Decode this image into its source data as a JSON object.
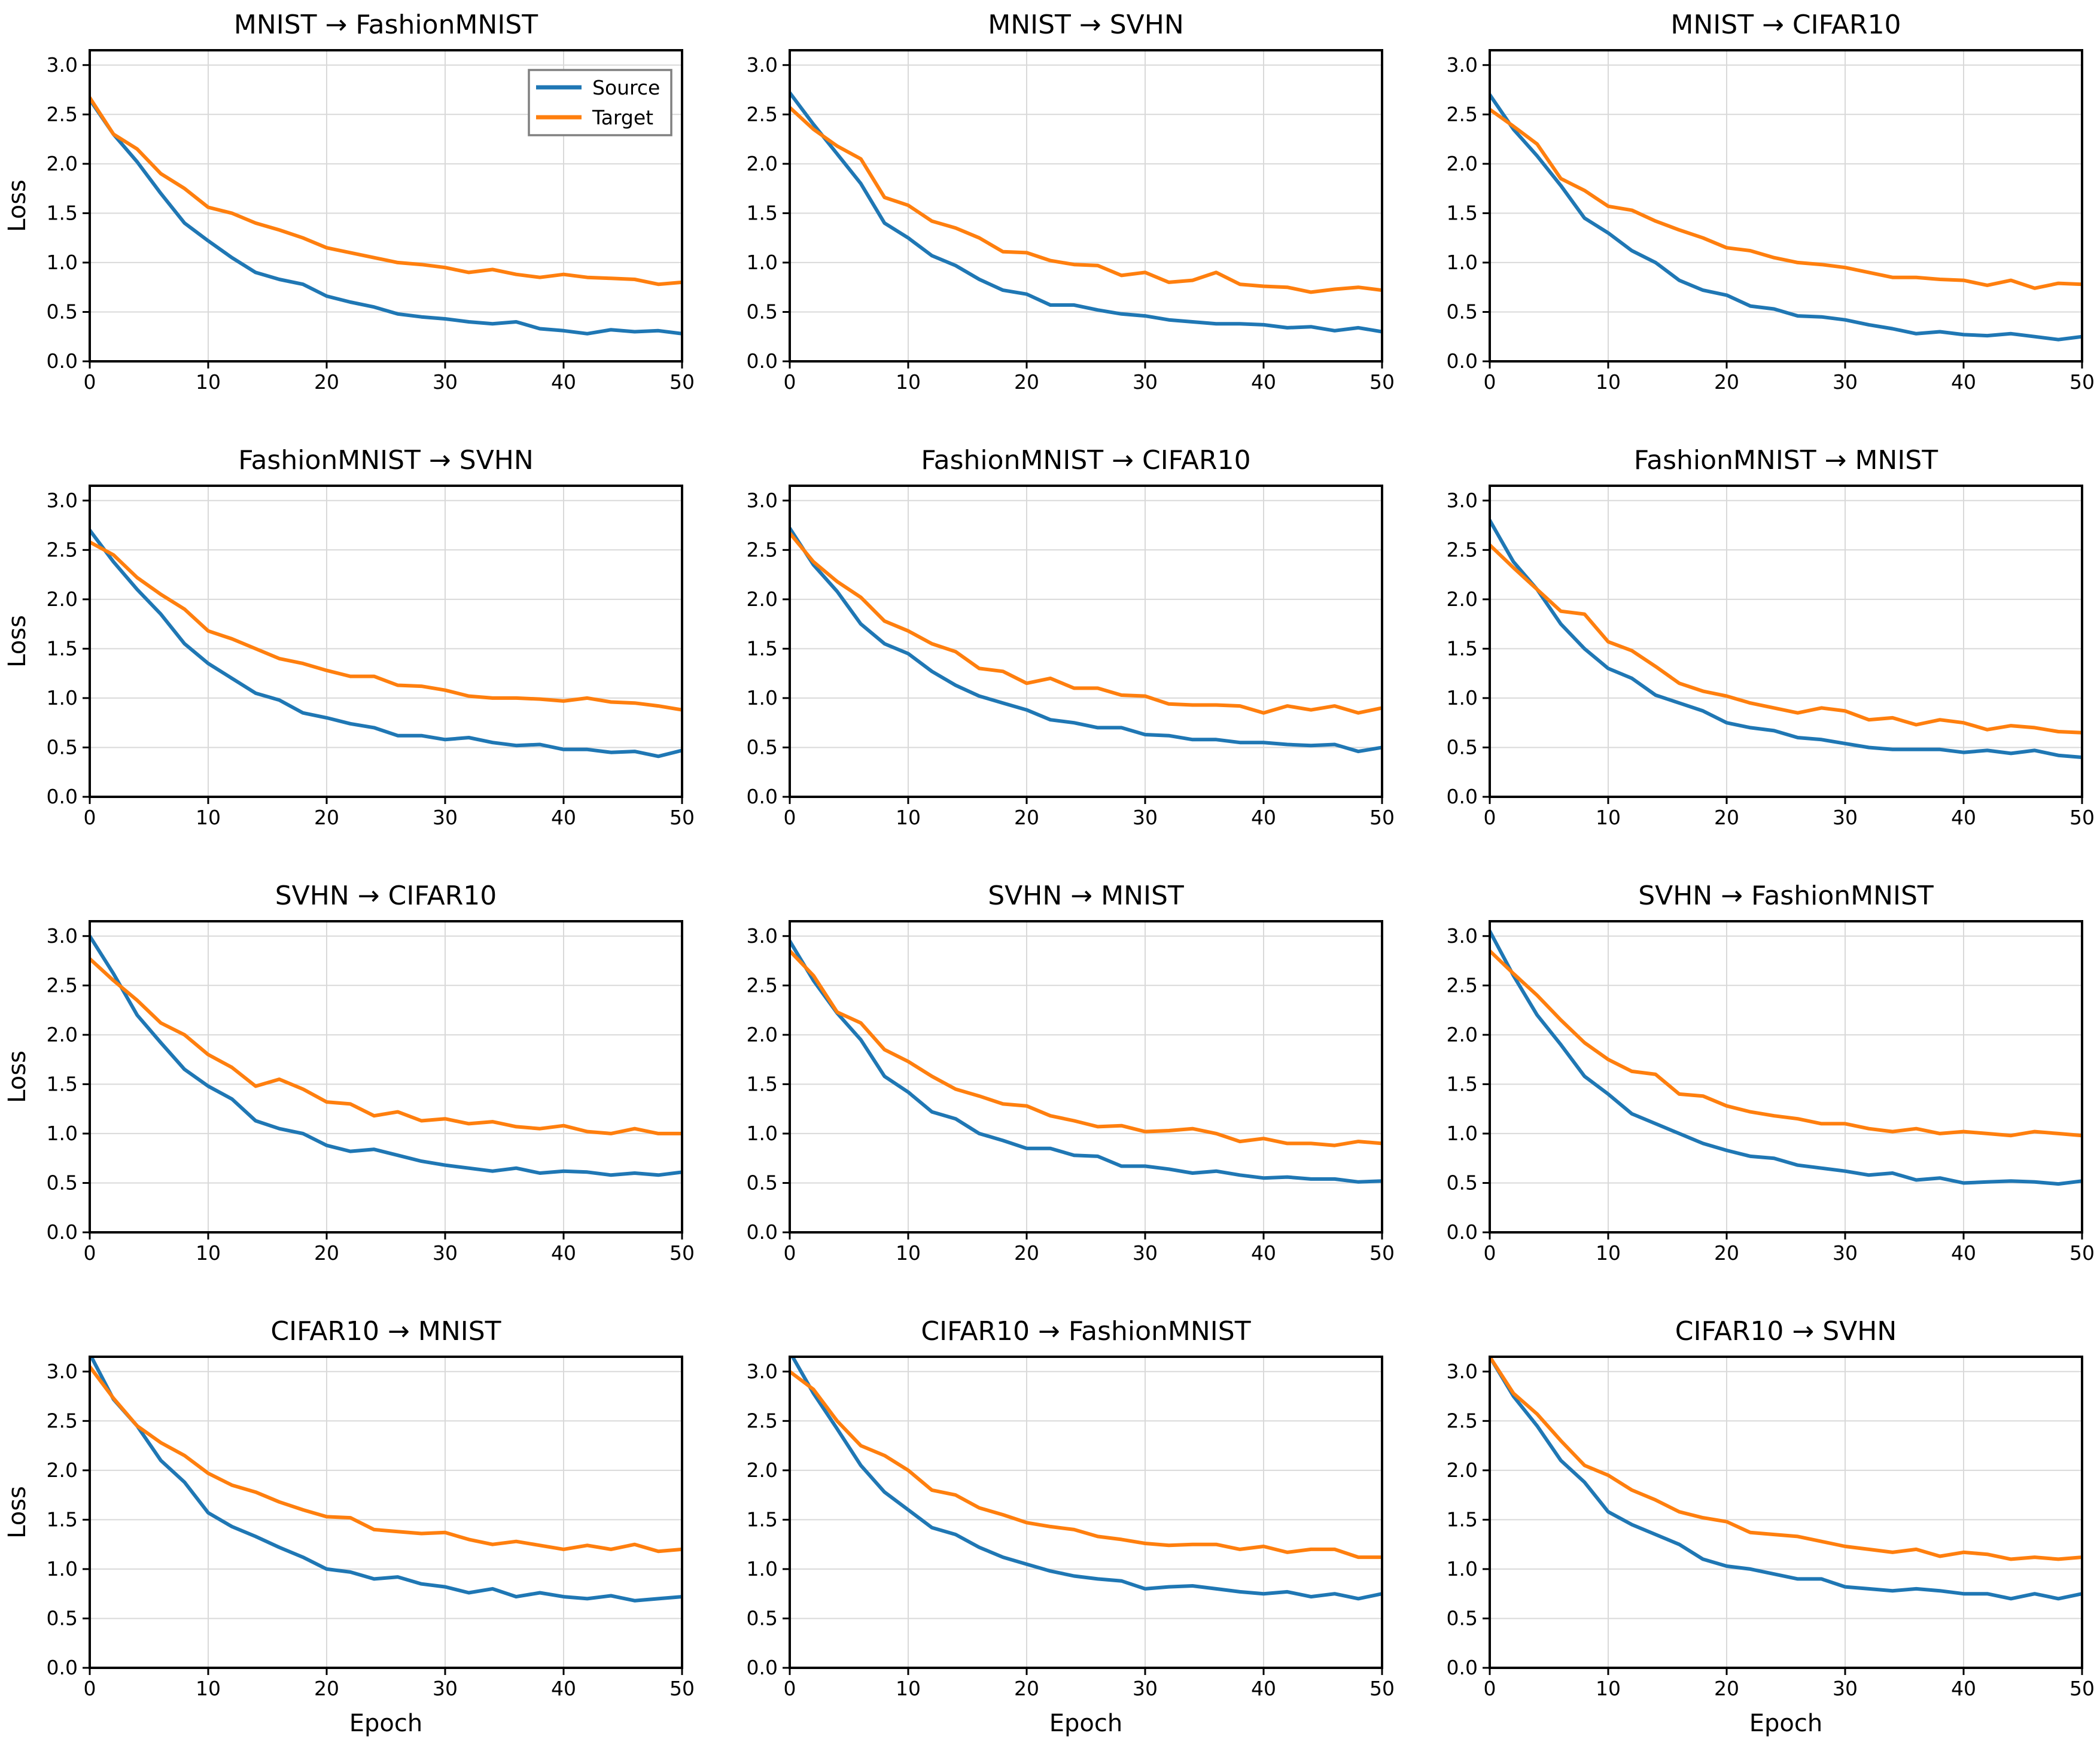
{
  "figure": {
    "background": "#ffffff",
    "grid_color": "#d9d9d9",
    "spine_color": "#000000",
    "source_color": "#1f77b4",
    "target_color": "#ff7f0e",
    "ylabel": "Loss",
    "xlabel": "Epoch",
    "xticks": [
      "0",
      "10",
      "20",
      "30",
      "40",
      "50"
    ],
    "xtick_values": [
      0,
      10,
      20,
      30,
      40,
      50
    ],
    "yticks": [
      "0.0",
      "0.5",
      "1.0",
      "1.5",
      "2.0",
      "2.5",
      "3.0"
    ],
    "ytick_values": [
      0.0,
      0.5,
      1.0,
      1.5,
      2.0,
      2.5,
      3.0
    ],
    "xlim": [
      0,
      50
    ],
    "ylim": [
      0,
      3.15
    ],
    "legend": {
      "position": "upper right",
      "shown_on_subplot": 0,
      "entries": [
        {
          "label": "Source",
          "color": "#1f77b4"
        },
        {
          "label": "Target",
          "color": "#ff7f0e"
        }
      ]
    }
  },
  "chart_data": {
    "type": "line",
    "grid": true,
    "x_label": "Epoch",
    "y_label": "Loss",
    "x": [
      0,
      2,
      4,
      6,
      8,
      10,
      12,
      14,
      16,
      18,
      20,
      22,
      24,
      26,
      28,
      30,
      32,
      34,
      36,
      38,
      40,
      42,
      44,
      46,
      48,
      50
    ],
    "subplots": [
      {
        "title": "MNIST → FashionMNIST",
        "series": [
          {
            "name": "Source",
            "values": [
              2.65,
              2.3,
              2.02,
              1.7,
              1.4,
              1.22,
              1.05,
              0.9,
              0.83,
              0.78,
              0.66,
              0.6,
              0.55,
              0.48,
              0.45,
              0.43,
              0.4,
              0.38,
              0.4,
              0.33,
              0.31,
              0.28,
              0.32,
              0.3,
              0.31,
              0.28
            ]
          },
          {
            "name": "Target",
            "values": [
              2.67,
              2.3,
              2.15,
              1.9,
              1.75,
              1.56,
              1.5,
              1.4,
              1.33,
              1.25,
              1.15,
              1.1,
              1.05,
              1.0,
              0.98,
              0.95,
              0.9,
              0.93,
              0.88,
              0.85,
              0.88,
              0.85,
              0.84,
              0.83,
              0.78,
              0.8
            ]
          }
        ]
      },
      {
        "title": "MNIST → SVHN",
        "series": [
          {
            "name": "Source",
            "values": [
              2.72,
              2.4,
              2.1,
              1.8,
              1.4,
              1.25,
              1.07,
              0.97,
              0.83,
              0.72,
              0.68,
              0.57,
              0.57,
              0.52,
              0.48,
              0.46,
              0.42,
              0.4,
              0.38,
              0.38,
              0.37,
              0.34,
              0.35,
              0.31,
              0.34,
              0.3
            ]
          },
          {
            "name": "Target",
            "values": [
              2.57,
              2.35,
              2.18,
              2.05,
              1.66,
              1.58,
              1.42,
              1.35,
              1.25,
              1.11,
              1.1,
              1.02,
              0.98,
              0.97,
              0.87,
              0.9,
              0.8,
              0.82,
              0.9,
              0.78,
              0.76,
              0.75,
              0.7,
              0.73,
              0.75,
              0.72
            ]
          }
        ]
      },
      {
        "title": "MNIST → CIFAR10",
        "series": [
          {
            "name": "Source",
            "values": [
              2.7,
              2.35,
              2.08,
              1.78,
              1.45,
              1.3,
              1.12,
              1.0,
              0.82,
              0.72,
              0.67,
              0.56,
              0.53,
              0.46,
              0.45,
              0.42,
              0.37,
              0.33,
              0.28,
              0.3,
              0.27,
              0.26,
              0.28,
              0.25,
              0.22,
              0.25
            ]
          },
          {
            "name": "Target",
            "values": [
              2.55,
              2.38,
              2.2,
              1.85,
              1.73,
              1.57,
              1.53,
              1.42,
              1.33,
              1.25,
              1.15,
              1.12,
              1.05,
              1.0,
              0.98,
              0.95,
              0.9,
              0.85,
              0.85,
              0.83,
              0.82,
              0.77,
              0.82,
              0.74,
              0.79,
              0.78
            ]
          }
        ]
      },
      {
        "title": "FashionMNIST → SVHN",
        "series": [
          {
            "name": "Source",
            "values": [
              2.7,
              2.38,
              2.1,
              1.85,
              1.55,
              1.35,
              1.2,
              1.05,
              0.98,
              0.85,
              0.8,
              0.74,
              0.7,
              0.62,
              0.62,
              0.58,
              0.6,
              0.55,
              0.52,
              0.53,
              0.48,
              0.48,
              0.45,
              0.46,
              0.41,
              0.47
            ]
          },
          {
            "name": "Target",
            "values": [
              2.58,
              2.45,
              2.22,
              2.05,
              1.9,
              1.68,
              1.6,
              1.5,
              1.4,
              1.35,
              1.28,
              1.22,
              1.22,
              1.13,
              1.12,
              1.08,
              1.02,
              1.0,
              1.0,
              0.99,
              0.97,
              1.0,
              0.96,
              0.95,
              0.92,
              0.88
            ]
          }
        ]
      },
      {
        "title": "FashionMNIST → CIFAR10",
        "series": [
          {
            "name": "Source",
            "values": [
              2.72,
              2.35,
              2.08,
              1.75,
              1.55,
              1.45,
              1.27,
              1.13,
              1.02,
              0.95,
              0.88,
              0.78,
              0.75,
              0.7,
              0.7,
              0.63,
              0.62,
              0.58,
              0.58,
              0.55,
              0.55,
              0.53,
              0.52,
              0.53,
              0.46,
              0.5
            ]
          },
          {
            "name": "Target",
            "values": [
              2.67,
              2.38,
              2.18,
              2.02,
              1.78,
              1.68,
              1.55,
              1.47,
              1.3,
              1.27,
              1.15,
              1.2,
              1.1,
              1.1,
              1.03,
              1.02,
              0.94,
              0.93,
              0.93,
              0.92,
              0.85,
              0.92,
              0.88,
              0.92,
              0.85,
              0.9
            ]
          }
        ]
      },
      {
        "title": "FashionMNIST → MNIST",
        "series": [
          {
            "name": "Source",
            "values": [
              2.8,
              2.38,
              2.1,
              1.75,
              1.5,
              1.3,
              1.2,
              1.03,
              0.95,
              0.87,
              0.75,
              0.7,
              0.67,
              0.6,
              0.58,
              0.54,
              0.5,
              0.48,
              0.48,
              0.48,
              0.45,
              0.47,
              0.44,
              0.47,
              0.42,
              0.4
            ]
          },
          {
            "name": "Target",
            "values": [
              2.55,
              2.32,
              2.1,
              1.88,
              1.85,
              1.57,
              1.48,
              1.32,
              1.15,
              1.07,
              1.02,
              0.95,
              0.9,
              0.85,
              0.9,
              0.87,
              0.78,
              0.8,
              0.73,
              0.78,
              0.75,
              0.68,
              0.72,
              0.7,
              0.66,
              0.65
            ]
          }
        ]
      },
      {
        "title": "SVHN → CIFAR10",
        "series": [
          {
            "name": "Source",
            "values": [
              3.0,
              2.62,
              2.2,
              1.92,
              1.65,
              1.48,
              1.35,
              1.13,
              1.05,
              1.0,
              0.88,
              0.82,
              0.84,
              0.78,
              0.72,
              0.68,
              0.65,
              0.62,
              0.65,
              0.6,
              0.62,
              0.61,
              0.58,
              0.6,
              0.58,
              0.61
            ]
          },
          {
            "name": "Target",
            "values": [
              2.77,
              2.55,
              2.35,
              2.12,
              2.0,
              1.8,
              1.67,
              1.48,
              1.55,
              1.45,
              1.32,
              1.3,
              1.18,
              1.22,
              1.13,
              1.15,
              1.1,
              1.12,
              1.07,
              1.05,
              1.08,
              1.02,
              1.0,
              1.05,
              1.0,
              1.0
            ]
          }
        ]
      },
      {
        "title": "SVHN → MNIST",
        "series": [
          {
            "name": "Source",
            "values": [
              2.95,
              2.55,
              2.22,
              1.95,
              1.58,
              1.42,
              1.22,
              1.15,
              1.0,
              0.93,
              0.85,
              0.85,
              0.78,
              0.77,
              0.67,
              0.67,
              0.64,
              0.6,
              0.62,
              0.58,
              0.55,
              0.56,
              0.54,
              0.54,
              0.51,
              0.52
            ]
          },
          {
            "name": "Target",
            "values": [
              2.85,
              2.6,
              2.23,
              2.12,
              1.85,
              1.73,
              1.58,
              1.45,
              1.38,
              1.3,
              1.28,
              1.18,
              1.13,
              1.07,
              1.08,
              1.02,
              1.03,
              1.05,
              1.0,
              0.92,
              0.95,
              0.9,
              0.9,
              0.88,
              0.92,
              0.9
            ]
          }
        ]
      },
      {
        "title": "SVHN → FashionMNIST",
        "series": [
          {
            "name": "Source",
            "values": [
              3.05,
              2.6,
              2.2,
              1.9,
              1.58,
              1.4,
              1.2,
              1.1,
              1.0,
              0.9,
              0.83,
              0.77,
              0.75,
              0.68,
              0.65,
              0.62,
              0.58,
              0.6,
              0.53,
              0.55,
              0.5,
              0.51,
              0.52,
              0.51,
              0.49,
              0.52
            ]
          },
          {
            "name": "Target",
            "values": [
              2.85,
              2.62,
              2.4,
              2.15,
              1.92,
              1.75,
              1.63,
              1.6,
              1.4,
              1.38,
              1.28,
              1.22,
              1.18,
              1.15,
              1.1,
              1.1,
              1.05,
              1.02,
              1.05,
              1.0,
              1.02,
              1.0,
              0.98,
              1.02,
              1.0,
              0.98
            ]
          }
        ]
      },
      {
        "title": "CIFAR10 → MNIST",
        "series": [
          {
            "name": "Source",
            "values": [
              3.18,
              2.72,
              2.45,
              2.1,
              1.88,
              1.57,
              1.43,
              1.33,
              1.22,
              1.12,
              1.0,
              0.97,
              0.9,
              0.92,
              0.85,
              0.82,
              0.76,
              0.8,
              0.72,
              0.76,
              0.72,
              0.7,
              0.73,
              0.68,
              0.7,
              0.72
            ]
          },
          {
            "name": "Target",
            "values": [
              3.05,
              2.73,
              2.45,
              2.28,
              2.15,
              1.97,
              1.85,
              1.78,
              1.68,
              1.6,
              1.53,
              1.52,
              1.4,
              1.38,
              1.36,
              1.37,
              1.3,
              1.25,
              1.28,
              1.24,
              1.2,
              1.24,
              1.2,
              1.25,
              1.18,
              1.2
            ]
          }
        ]
      },
      {
        "title": "CIFAR10 → FashionMNIST",
        "series": [
          {
            "name": "Source",
            "values": [
              3.2,
              2.78,
              2.42,
              2.05,
              1.78,
              1.6,
              1.42,
              1.35,
              1.22,
              1.12,
              1.05,
              0.98,
              0.93,
              0.9,
              0.88,
              0.8,
              0.82,
              0.83,
              0.8,
              0.77,
              0.75,
              0.77,
              0.72,
              0.75,
              0.7,
              0.75
            ]
          },
          {
            "name": "Target",
            "values": [
              3.0,
              2.82,
              2.5,
              2.25,
              2.15,
              2.0,
              1.8,
              1.75,
              1.62,
              1.55,
              1.47,
              1.43,
              1.4,
              1.33,
              1.3,
              1.26,
              1.24,
              1.25,
              1.25,
              1.2,
              1.23,
              1.17,
              1.2,
              1.2,
              1.12,
              1.12
            ]
          }
        ]
      },
      {
        "title": "CIFAR10 → SVHN",
        "series": [
          {
            "name": "Source",
            "values": [
              3.15,
              2.75,
              2.45,
              2.1,
              1.88,
              1.58,
              1.45,
              1.35,
              1.25,
              1.1,
              1.03,
              1.0,
              0.95,
              0.9,
              0.9,
              0.82,
              0.8,
              0.78,
              0.8,
              0.78,
              0.75,
              0.75,
              0.7,
              0.75,
              0.7,
              0.75
            ]
          },
          {
            "name": "Target",
            "values": [
              3.15,
              2.78,
              2.57,
              2.3,
              2.05,
              1.95,
              1.8,
              1.7,
              1.58,
              1.52,
              1.48,
              1.37,
              1.35,
              1.33,
              1.28,
              1.23,
              1.2,
              1.17,
              1.2,
              1.13,
              1.17,
              1.15,
              1.1,
              1.12,
              1.1,
              1.12
            ]
          }
        ]
      }
    ]
  }
}
